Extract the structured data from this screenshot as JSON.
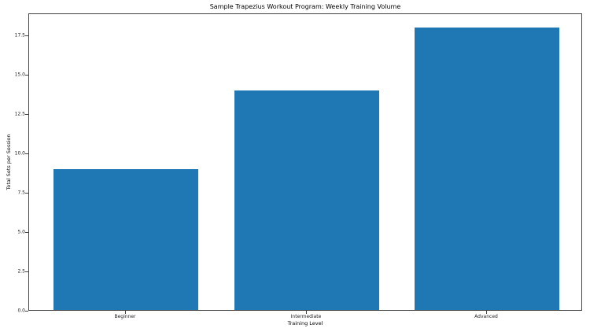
{
  "chart_data": {
    "type": "bar",
    "title": "Sample Trapezius Workout Program: Weekly Training Volume",
    "xlabel": "Training Level",
    "ylabel": "Total Sets per Session",
    "categories": [
      "Beginner",
      "Intermediate",
      "Advanced"
    ],
    "values": [
      9,
      14,
      18
    ],
    "ylim": [
      0,
      18.9
    ],
    "yticks": [
      "0.0",
      "2.5",
      "5.0",
      "7.5",
      "10.0",
      "12.5",
      "15.0",
      "17.5"
    ],
    "grid": false,
    "legend": null,
    "bar_color": "#1f77b4"
  }
}
